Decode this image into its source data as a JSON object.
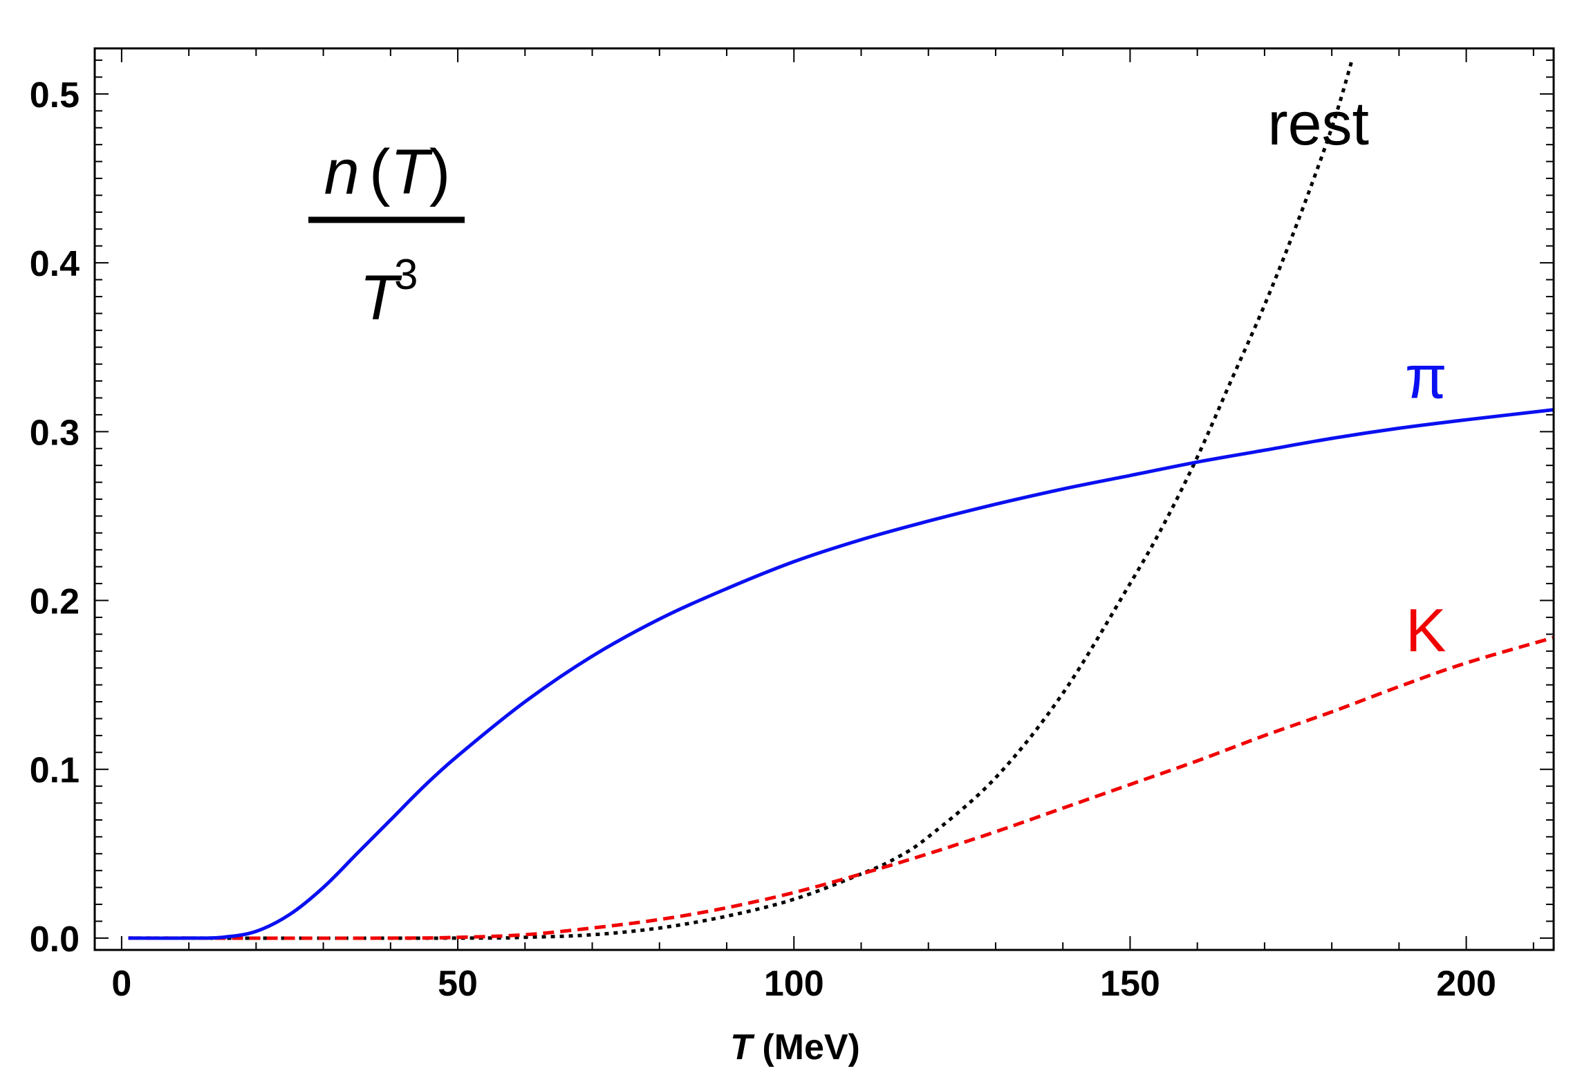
{
  "chart_data": {
    "type": "line",
    "title": "",
    "xlabel": {
      "var": "T",
      "unit": " (MeV)"
    },
    "ylabel": {
      "numerator": {
        "n": "n",
        "open": "(",
        "T": "T",
        "close": ")"
      },
      "denominator": {
        "T": "T",
        "exp": "3"
      }
    },
    "xlim": [
      -4,
      213
    ],
    "ylim": [
      -0.007,
      0.527
    ],
    "xticks": [
      0,
      50,
      100,
      150,
      200
    ],
    "xtick_labels": [
      "0",
      "50",
      "100",
      "150",
      "200"
    ],
    "yticks": [
      0.0,
      0.1,
      0.2,
      0.3,
      0.4,
      0.5
    ],
    "ytick_labels": [
      "0.0",
      "0.1",
      "0.2",
      "0.3",
      "0.4",
      "0.5"
    ],
    "grid": false,
    "series": [
      {
        "name": "pi",
        "label": "π",
        "color": "#0a10f0",
        "style": "solid",
        "x": [
          1,
          10,
          15,
          20,
          25,
          30,
          35,
          40,
          45,
          50,
          60,
          70,
          80,
          90,
          100,
          110,
          120,
          130,
          140,
          150,
          160,
          170,
          180,
          190,
          200,
          213
        ],
        "values": [
          0.0,
          0.0,
          0.0005,
          0.004,
          0.014,
          0.03,
          0.05,
          0.07,
          0.09,
          0.108,
          0.14,
          0.167,
          0.189,
          0.207,
          0.223,
          0.236,
          0.247,
          0.257,
          0.266,
          0.274,
          0.282,
          0.289,
          0.296,
          0.302,
          0.307,
          0.313
        ]
      },
      {
        "name": "K",
        "label": "K",
        "color": "#f00000",
        "style": "dashed",
        "x": [
          1,
          40,
          50,
          60,
          70,
          80,
          90,
          100,
          110,
          120,
          130,
          140,
          150,
          160,
          170,
          180,
          190,
          200,
          213
        ],
        "values": [
          0.0,
          0.0,
          0.0005,
          0.002,
          0.006,
          0.011,
          0.018,
          0.027,
          0.038,
          0.05,
          0.063,
          0.077,
          0.091,
          0.105,
          0.12,
          0.134,
          0.149,
          0.163,
          0.178
        ]
      },
      {
        "name": "rest",
        "label": "rest",
        "color": "#000000",
        "style": "dotted",
        "x": [
          1,
          50,
          60,
          70,
          80,
          90,
          100,
          110,
          115,
          120,
          130,
          140,
          150,
          155,
          160,
          165,
          170,
          175,
          180,
          183
        ],
        "values": [
          0.0,
          0.0,
          0.0005,
          0.002,
          0.006,
          0.013,
          0.023,
          0.038,
          0.047,
          0.06,
          0.095,
          0.145,
          0.21,
          0.245,
          0.285,
          0.33,
          0.375,
          0.425,
          0.48,
          0.52
        ]
      }
    ],
    "annotations": [
      {
        "series": "rest",
        "text": "rest",
        "at": [
          178,
          0.47
        ]
      },
      {
        "series": "pi",
        "text": "π",
        "at": [
          194,
          0.32
        ]
      },
      {
        "series": "K",
        "text": "K",
        "at": [
          194,
          0.17
        ]
      }
    ]
  }
}
